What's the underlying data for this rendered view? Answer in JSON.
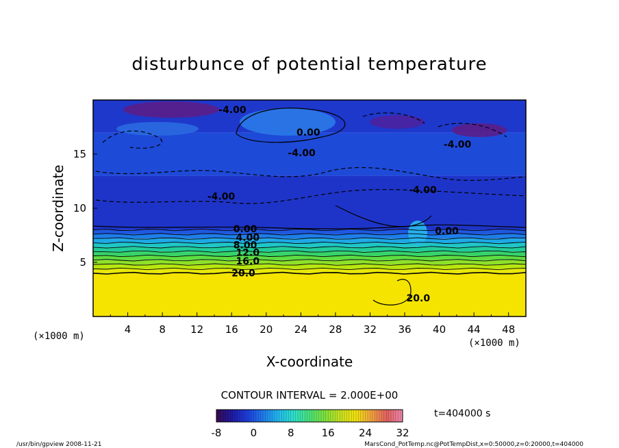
{
  "chart_data": {
    "type": "heatmap",
    "title": "disturbunce of potential temperature",
    "xlabel": "X-coordinate",
    "ylabel": "Z-coordinate",
    "x_unit": "(×1000 m)",
    "z_unit": "(×1000 m)",
    "xlim": [
      0,
      50
    ],
    "ylim": [
      0,
      20
    ],
    "x_ticks": [
      "4",
      "8",
      "12",
      "16",
      "20",
      "24",
      "28",
      "32",
      "36",
      "40",
      "44",
      "48"
    ],
    "y_ticks": [
      "5",
      "10",
      "15"
    ],
    "contour_interval": "CONTOUR INTERVAL = 2.000E+00",
    "time_label": "t=404000 s",
    "colorbar": {
      "min": -8,
      "max": 32,
      "ticks": [
        "-8",
        "0",
        "8",
        "16",
        "24",
        "32"
      ],
      "colors": [
        "#3a0a4e",
        "#1d1aa0",
        "#1e3ddc",
        "#1f7ae8",
        "#22b8ee",
        "#2ee0c8",
        "#4ae078",
        "#7fe03c",
        "#c8e020",
        "#f0e010",
        "#f0a040",
        "#e06060",
        "#ee88b0"
      ]
    },
    "layers": [
      {
        "z_top": 4.0,
        "value": 20.0,
        "color": "#f5e400"
      },
      {
        "z_top": 4.4,
        "value": 18.0,
        "color": "#e8e80a"
      },
      {
        "z_top": 4.8,
        "value": 16.0,
        "color": "#b8e60e"
      },
      {
        "z_top": 5.2,
        "value": 14.0,
        "color": "#8ee02a"
      },
      {
        "z_top": 5.6,
        "value": 12.0,
        "color": "#5edc40"
      },
      {
        "z_top": 6.0,
        "value": 10.0,
        "color": "#36d46a"
      },
      {
        "z_top": 6.4,
        "value": 8.0,
        "color": "#22cc98"
      },
      {
        "z_top": 6.8,
        "value": 6.0,
        "color": "#1ec6c6"
      },
      {
        "z_top": 7.2,
        "value": 4.0,
        "color": "#1ea8e6"
      },
      {
        "z_top": 7.6,
        "value": 2.0,
        "color": "#1e7ee8"
      },
      {
        "z_top": 8.0,
        "value": 0.0,
        "color": "#1e58e0"
      },
      {
        "z_top": 13.0,
        "value": -4.0,
        "color": "#1e34c8"
      },
      {
        "z_top": 17.0,
        "value": -2.0,
        "color": "#1e4ad8"
      },
      {
        "z_top": 20.0,
        "value": -4.0,
        "color": "#1e38cc"
      }
    ],
    "contour_labels": [
      {
        "text": "20.0",
        "x": 16.0,
        "z": 3.7
      },
      {
        "text": "16.0",
        "x": 16.5,
        "z": 4.8
      },
      {
        "text": "12.0",
        "x": 16.5,
        "z": 5.6
      },
      {
        "text": "8.00",
        "x": 16.2,
        "z": 6.3
      },
      {
        "text": "4.00",
        "x": 16.5,
        "z": 7.0
      },
      {
        "text": "0.00",
        "x": 16.2,
        "z": 7.8
      },
      {
        "text": "0.00",
        "x": 39.5,
        "z": 7.6
      },
      {
        "text": "20.0",
        "x": 36.2,
        "z": 1.4
      },
      {
        "text": "-4.00",
        "x": 13.2,
        "z": 10.8
      },
      {
        "text": "-4.00",
        "x": 36.5,
        "z": 11.4
      },
      {
        "text": "-4.00",
        "x": 22.5,
        "z": 14.8
      },
      {
        "text": "0.00",
        "x": 23.5,
        "z": 16.7
      },
      {
        "text": "-4.00",
        "x": 40.5,
        "z": 15.6
      },
      {
        "text": "-4.00",
        "x": 14.5,
        "z": 18.8
      }
    ]
  },
  "footer": {
    "left": "/usr/bin/gpview   2008-11-21",
    "right": "MarsCond_PotTemp.nc@PotTempDist,x=0:50000,z=0:20000,t=404000"
  }
}
